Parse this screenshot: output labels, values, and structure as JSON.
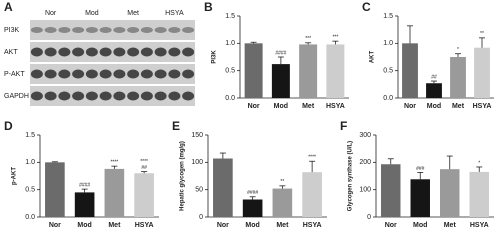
{
  "blot": {
    "panel": "A",
    "lanes": [
      "Nor",
      "Mod",
      "Met",
      "HSYA"
    ],
    "rows": [
      "PI3K",
      "AKT",
      "P-AKT",
      "GAPDH"
    ]
  },
  "chart_data": [
    {
      "type": "bar",
      "panel": "B",
      "ylabel": "PI3K",
      "categories": [
        "Nor",
        "Mod",
        "Met",
        "HSYA"
      ],
      "values": [
        1.0,
        0.62,
        0.98,
        0.98
      ],
      "errors": [
        0.02,
        0.13,
        0.03,
        0.06
      ],
      "annotations": [
        [],
        [
          "####"
        ],
        [
          "***"
        ],
        [
          "***"
        ]
      ],
      "colors": [
        "#6b6b6b",
        "#151515",
        "#9a9a9a",
        "#cdcdcd"
      ],
      "ylim": [
        0,
        1.5
      ],
      "yticks": [
        {
          "value": 0,
          "label": "0.0"
        },
        {
          "value": 0.5,
          "label": "0.5"
        },
        {
          "value": 1,
          "label": "1.0"
        },
        {
          "value": 1.5,
          "label": "1.5"
        }
      ]
    },
    {
      "type": "bar",
      "panel": "C",
      "ylabel": "AKT",
      "categories": [
        "Nor",
        "Mod",
        "Met",
        "HSYA"
      ],
      "values": [
        1.0,
        0.27,
        0.75,
        0.92
      ],
      "errors": [
        0.32,
        0.04,
        0.06,
        0.18
      ],
      "annotations": [
        [],
        [
          "##"
        ],
        [
          "*"
        ],
        [
          "**"
        ]
      ],
      "colors": [
        "#6b6b6b",
        "#151515",
        "#9a9a9a",
        "#cdcdcd"
      ],
      "ylim": [
        0,
        1.5
      ],
      "yticks": [
        {
          "value": 0,
          "label": "0.0"
        },
        {
          "value": 0.5,
          "label": "0.5"
        },
        {
          "value": 1,
          "label": "1.0"
        },
        {
          "value": 1.5,
          "label": "1.5"
        }
      ]
    },
    {
      "type": "bar",
      "panel": "D",
      "ylabel": "p-AKT",
      "categories": [
        "Nor",
        "Mod",
        "Met",
        "HSYA"
      ],
      "values": [
        1.0,
        0.45,
        0.88,
        0.8
      ],
      "errors": [
        0.01,
        0.06,
        0.05,
        0.03
      ],
      "annotations": [
        [],
        [
          "####"
        ],
        [
          "****"
        ],
        [
          "****",
          "##"
        ]
      ],
      "colors": [
        "#6b6b6b",
        "#151515",
        "#9a9a9a",
        "#cdcdcd"
      ],
      "ylim": [
        0,
        1.5
      ],
      "yticks": [
        {
          "value": 0,
          "label": "0.0"
        },
        {
          "value": 0.5,
          "label": "0.5"
        },
        {
          "value": 1,
          "label": "1.0"
        },
        {
          "value": 1.5,
          "label": "1.5"
        }
      ]
    },
    {
      "type": "bar",
      "panel": "E",
      "ylabel": "Hepatic glycogen (mg/g)",
      "categories": [
        "Nor",
        "Mod",
        "Met",
        "HSYA"
      ],
      "values": [
        107,
        32,
        52,
        82
      ],
      "errors": [
        10,
        5,
        5,
        20
      ],
      "annotations": [
        [],
        [
          "####"
        ],
        [
          "**"
        ],
        [
          "****"
        ]
      ],
      "colors": [
        "#6b6b6b",
        "#151515",
        "#9a9a9a",
        "#cdcdcd"
      ],
      "ylim": [
        0,
        150
      ],
      "yticks": [
        0,
        50,
        100,
        150
      ]
    },
    {
      "type": "bar",
      "panel": "F",
      "ylabel": "Glycogen synthase (U/L)",
      "categories": [
        "Nor",
        "Mod",
        "Met",
        "HSYA"
      ],
      "values": [
        193,
        138,
        175,
        165
      ],
      "errors": [
        20,
        25,
        48,
        18
      ],
      "annotations": [
        [],
        [
          "###"
        ],
        [],
        [
          "*"
        ]
      ],
      "colors": [
        "#6b6b6b",
        "#151515",
        "#9a9a9a",
        "#cdcdcd"
      ],
      "ylim": [
        0,
        300
      ],
      "yticks": [
        0,
        100,
        200,
        300
      ]
    }
  ]
}
